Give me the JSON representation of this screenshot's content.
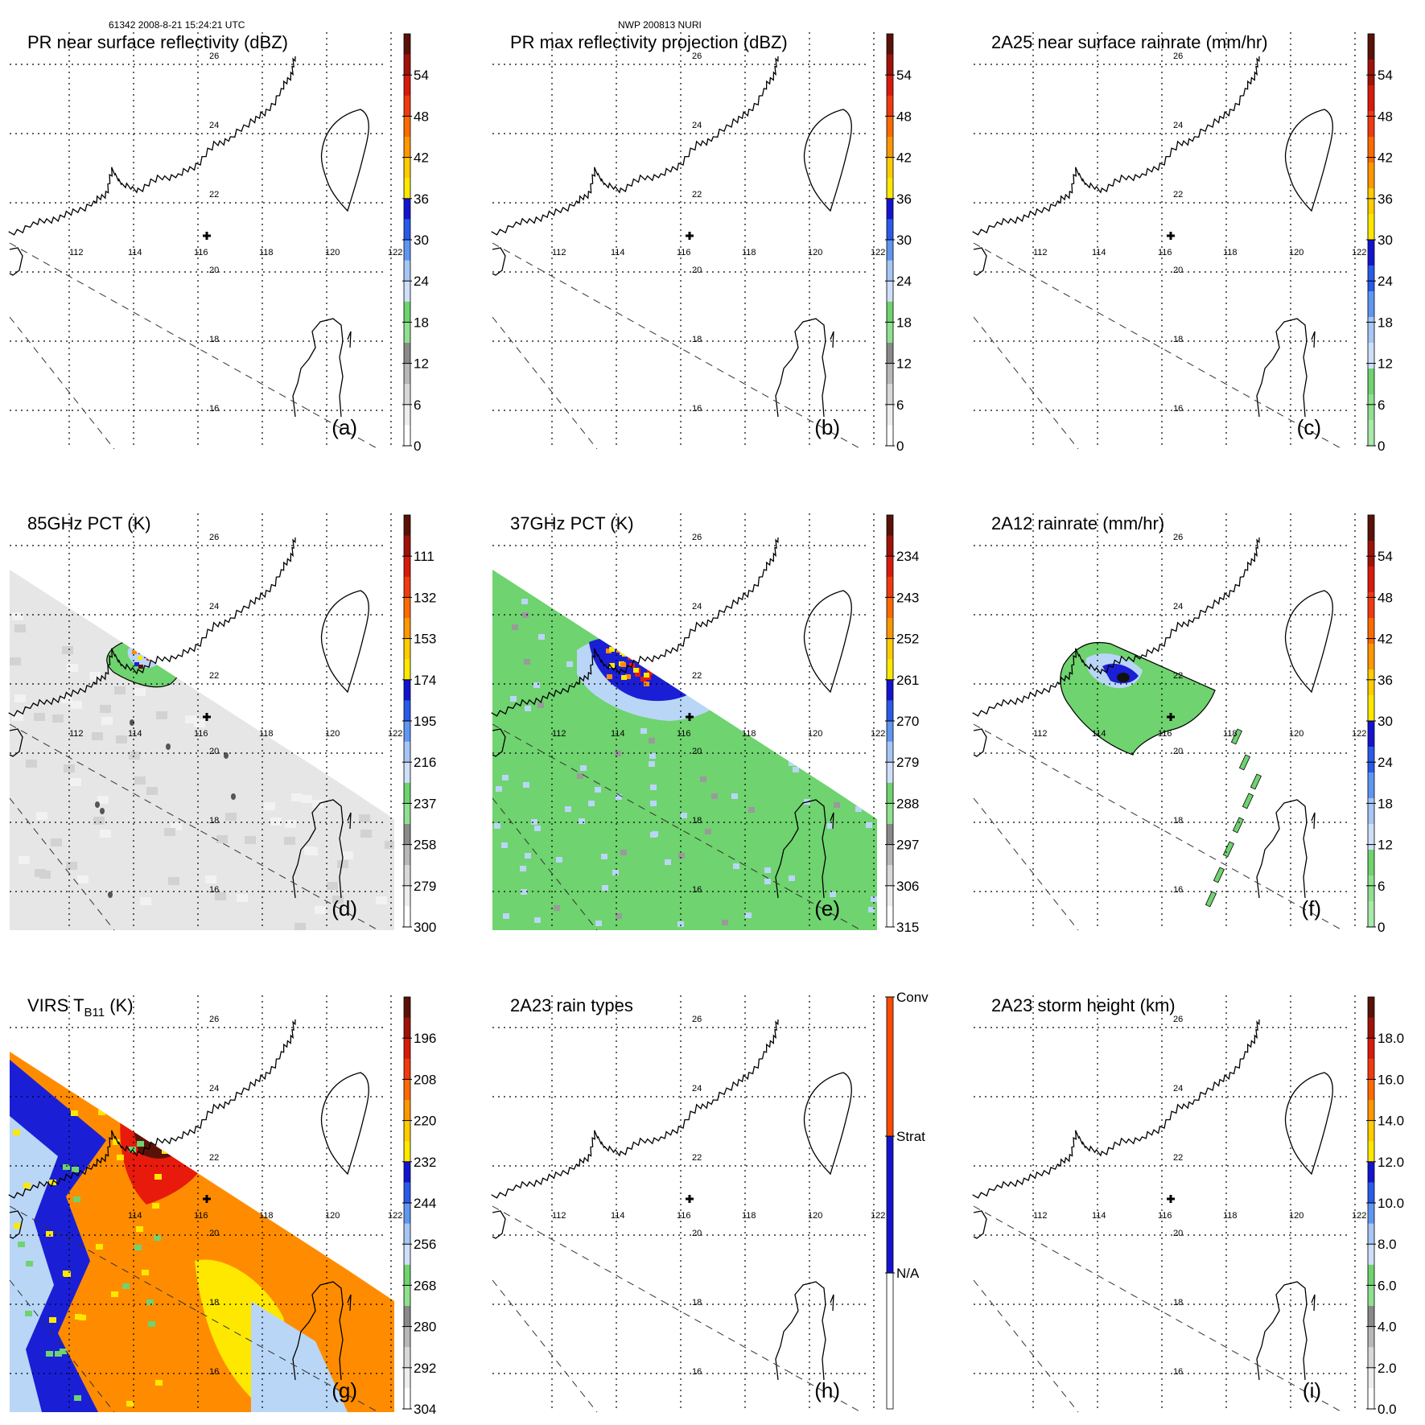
{
  "header": {
    "left": "61342 2008-8-21 15:24:21 UTC",
    "center": "NWP 200813 NURI"
  },
  "colors": {
    "green": "#6fd36f",
    "lightblue": "#b9d6f7",
    "blue": "#1a1fd6",
    "yellow": "#ffe800",
    "orange": "#ff8c00",
    "red": "#e81a0c",
    "darkred": "#5a1208",
    "gray": "#9a9a9a"
  },
  "chart_data": [
    {
      "id": "a",
      "type": "heatmap",
      "title": "PR near surface reflectivity (dBZ)",
      "label": "(a)",
      "lat_labels": [
        "26",
        "24",
        "22",
        "20",
        "18",
        "16"
      ],
      "lon_labels": [
        "112",
        "114",
        "116",
        "118",
        "120",
        "122"
      ],
      "colorbar": {
        "kind": "dbz",
        "ticks": [
          "54",
          "48",
          "42",
          "36",
          "30",
          "24",
          "18",
          "12",
          "6",
          "0"
        ]
      },
      "field": "none"
    },
    {
      "id": "b",
      "type": "heatmap",
      "title": "PR max reflectivity projection (dBZ)",
      "label": "(b)",
      "lat_labels": [
        "26",
        "24",
        "22",
        "20",
        "18",
        "16"
      ],
      "lon_labels": [
        "112",
        "114",
        "116",
        "118",
        "120",
        "122"
      ],
      "colorbar": {
        "kind": "dbz",
        "ticks": [
          "54",
          "48",
          "42",
          "36",
          "30",
          "24",
          "18",
          "12",
          "6",
          "0"
        ]
      },
      "field": "none"
    },
    {
      "id": "c",
      "type": "heatmap",
      "title": "2A25 near surface rainrate (mm/hr)",
      "label": "(c)",
      "lat_labels": [
        "26",
        "24",
        "22",
        "20",
        "18",
        "16"
      ],
      "lon_labels": [
        "112",
        "114",
        "116",
        "118",
        "120",
        "122"
      ],
      "colorbar": {
        "kind": "rain",
        "ticks": [
          "54",
          "48",
          "42",
          "36",
          "30",
          "24",
          "18",
          "12",
          "6",
          "0"
        ]
      },
      "field": "none"
    },
    {
      "id": "d",
      "type": "heatmap",
      "title": "85GHz PCT (K)",
      "label": "(d)",
      "lat_labels": [
        "26",
        "24",
        "22",
        "20",
        "18",
        "16"
      ],
      "lon_labels": [
        "112",
        "114",
        "116",
        "118",
        "120",
        "122"
      ],
      "colorbar": {
        "kind": "dbz",
        "ticks": [
          "111",
          "132",
          "153",
          "174",
          "195",
          "216",
          "237",
          "258",
          "279",
          "300"
        ]
      },
      "field": "pct85"
    },
    {
      "id": "e",
      "type": "heatmap",
      "title": "37GHz PCT (K)",
      "label": "(e)",
      "lat_labels": [
        "26",
        "24",
        "22",
        "20",
        "18",
        "16"
      ],
      "lon_labels": [
        "112",
        "114",
        "116",
        "118",
        "120",
        "122"
      ],
      "colorbar": {
        "kind": "dbz",
        "ticks": [
          "234",
          "243",
          "252",
          "261",
          "270",
          "279",
          "288",
          "297",
          "306",
          "315"
        ]
      },
      "field": "pct37"
    },
    {
      "id": "f",
      "type": "heatmap",
      "title": "2A12 rainrate (mm/hr)",
      "label": "(f)",
      "lat_labels": [
        "26",
        "24",
        "22",
        "20",
        "18",
        "16"
      ],
      "lon_labels": [
        "112",
        "114",
        "116",
        "118",
        "120",
        "122"
      ],
      "colorbar": {
        "kind": "rain",
        "ticks": [
          "54",
          "48",
          "42",
          "36",
          "30",
          "24",
          "18",
          "12",
          "6",
          "0"
        ]
      },
      "field": "rain12"
    },
    {
      "id": "g",
      "type": "heatmap",
      "title": "VIRS T",
      "title_sub": "B11",
      "title_tail": " (K)",
      "label": "(g)",
      "lat_labels": [
        "26",
        "24",
        "22",
        "20",
        "18",
        "16"
      ],
      "lon_labels": [
        "114",
        "116",
        "118",
        "120",
        "122"
      ],
      "colorbar": {
        "kind": "dbz",
        "ticks": [
          "196",
          "208",
          "220",
          "232",
          "244",
          "256",
          "268",
          "280",
          "292",
          "304"
        ]
      },
      "field": "virs"
    },
    {
      "id": "h",
      "type": "heatmap",
      "title": "2A23 rain types",
      "label": "(h)",
      "lat_labels": [
        "26",
        "24",
        "22",
        "20",
        "18",
        "16"
      ],
      "lon_labels": [
        "112",
        "114",
        "116",
        "118",
        "120",
        "122"
      ],
      "colorbar": {
        "kind": "types",
        "ticks": [
          "Conv",
          "Strat",
          "N/A"
        ]
      },
      "field": "none"
    },
    {
      "id": "i",
      "type": "heatmap",
      "title": "2A23 storm height (km)",
      "label": "(i)",
      "lat_labels": [
        "26",
        "24",
        "22",
        "20",
        "18",
        "16"
      ],
      "lon_labels": [
        "112",
        "114",
        "116",
        "118",
        "120",
        "122"
      ],
      "colorbar": {
        "kind": "height",
        "ticks": [
          "18.0",
          "16.0",
          "14.0",
          "12.0",
          "10.0",
          "8.0",
          "6.0",
          "4.0",
          "2.0",
          "0.0"
        ]
      },
      "field": "none"
    }
  ]
}
